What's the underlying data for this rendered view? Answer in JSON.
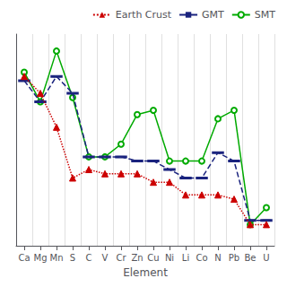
{
  "chart_data": {
    "type": "line",
    "xlabel": "Element",
    "categories": [
      "Ca",
      "Mg",
      "Mn",
      "S",
      "C",
      "V",
      "Cr",
      "Zn",
      "Cu",
      "Ni",
      "Li",
      "Co",
      "N",
      "Pb",
      "Be",
      "U"
    ],
    "series": [
      {
        "name": "Earth Crust",
        "color": "#cc0000",
        "marker": "triangle",
        "line_style": "dotted",
        "values": [
          4.5,
          4.1,
          3.3,
          2.1,
          2.3,
          2.2,
          2.2,
          2.2,
          2.0,
          2.0,
          1.7,
          1.7,
          1.7,
          1.6,
          1.0,
          1.0
        ]
      },
      {
        "name": "GMT",
        "color": "#1a237e",
        "marker": "dash",
        "line_style": "dashed",
        "values": [
          4.4,
          3.9,
          4.5,
          4.1,
          2.6,
          2.6,
          2.6,
          2.5,
          2.5,
          2.3,
          2.1,
          2.1,
          2.7,
          2.5,
          1.1,
          1.1
        ]
      },
      {
        "name": "SMT",
        "color": "#00aa00",
        "marker": "open_circle",
        "line_style": "solid",
        "values": [
          4.6,
          3.9,
          5.1,
          4.0,
          2.6,
          2.6,
          2.9,
          3.6,
          3.7,
          2.5,
          2.5,
          2.5,
          3.5,
          3.7,
          1.0,
          1.4
        ]
      }
    ],
    "ylim": [
      0.5,
      5.5
    ],
    "tick_labels": "x",
    "grid": "x",
    "legend": "upper right"
  }
}
